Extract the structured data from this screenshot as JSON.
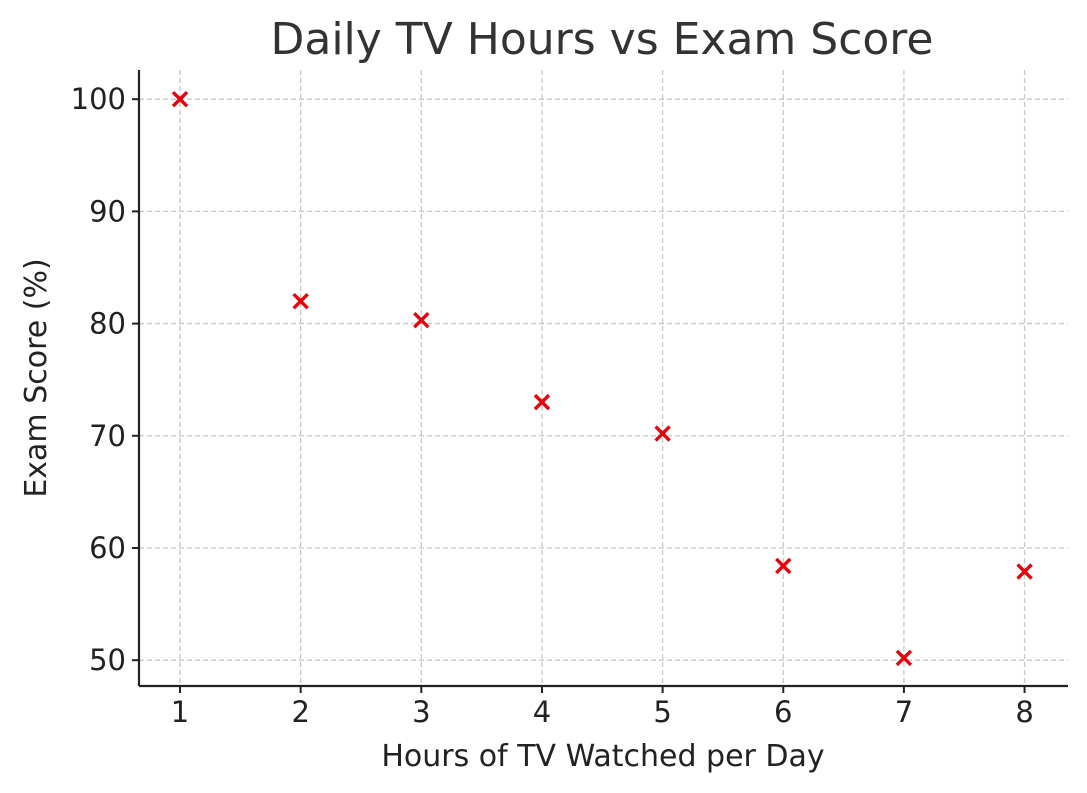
{
  "chart_data": {
    "type": "scatter",
    "title": "Daily TV Hours vs Exam Score",
    "xlabel": "Hours of TV Watched per Day",
    "ylabel": "Exam Score (%)",
    "x": [
      1,
      2,
      3,
      4,
      5,
      6,
      7,
      8
    ],
    "y": [
      100,
      82,
      80.3,
      73,
      70.2,
      58.4,
      50.2,
      57.9
    ],
    "xlim": [
      0.66,
      8.36
    ],
    "ylim": [
      47.7,
      102.6
    ],
    "xticks": [
      1,
      2,
      3,
      4,
      5,
      6,
      7,
      8
    ],
    "xtick_labels": [
      "1",
      "2",
      "3",
      "4",
      "5",
      "6",
      "7",
      "8"
    ],
    "yticks": [
      50,
      60,
      70,
      80,
      90,
      100
    ],
    "ytick_labels": [
      "50",
      "60",
      "70",
      "80",
      "90",
      "100"
    ],
    "marker": "x",
    "marker_color": "#e8000b",
    "grid": true,
    "legend": "none"
  }
}
